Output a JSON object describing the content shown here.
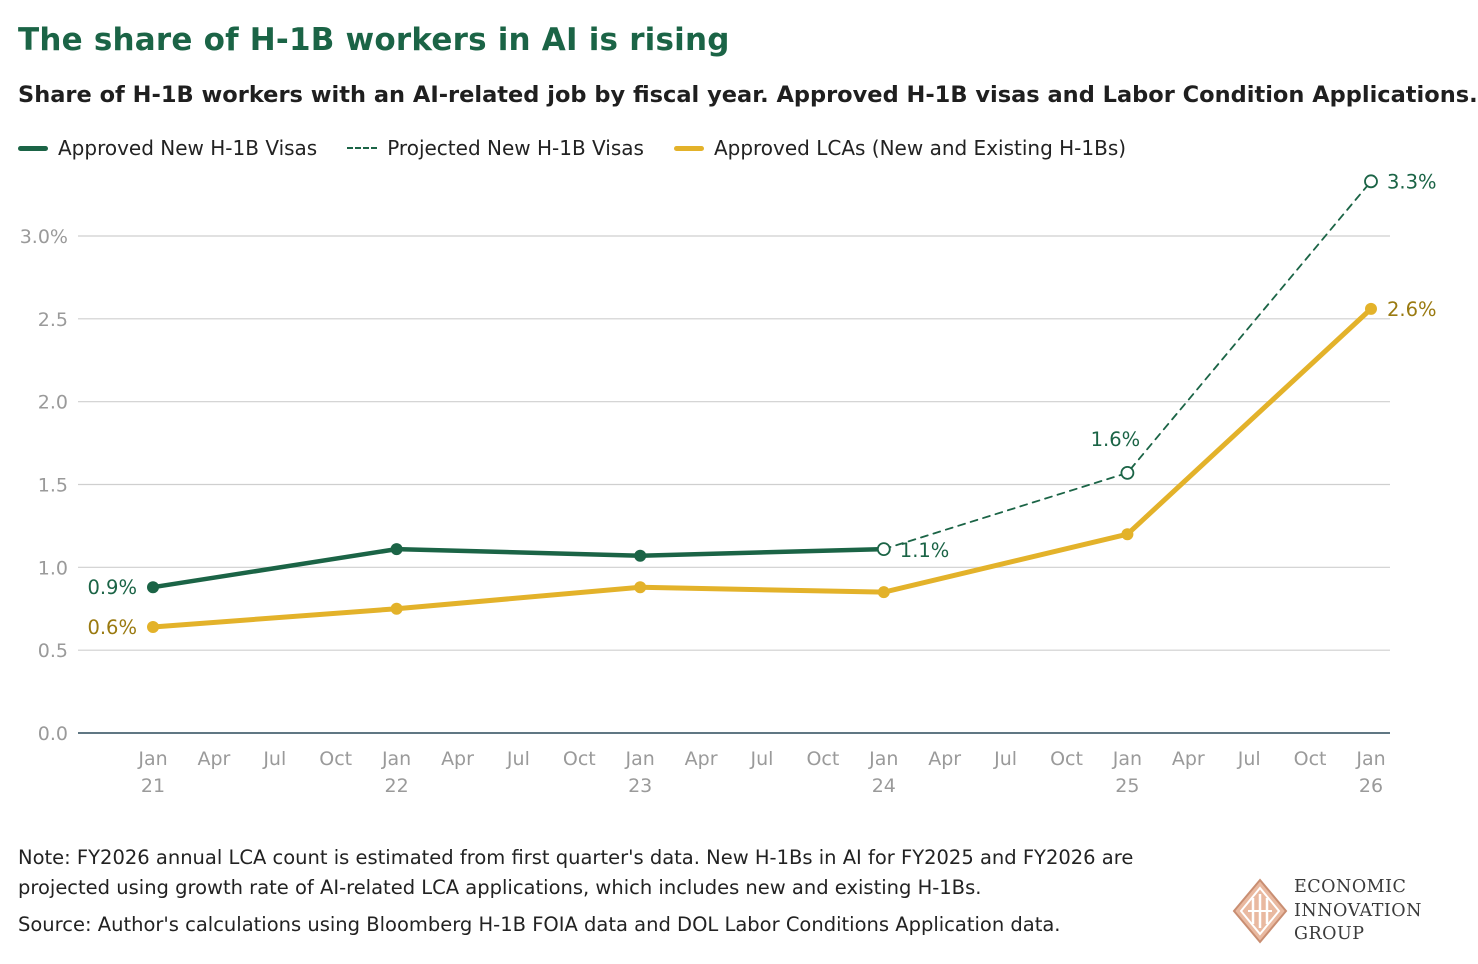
{
  "title": "The share of H-1B workers in AI is rising",
  "subtitle": "Share of H-1B workers with an AI-related job by fiscal year. Approved H-1B visas and Labor Condition Applications.",
  "legend": [
    {
      "label": "Approved New H-1B Visas",
      "style": "solid",
      "color": "#1b6446"
    },
    {
      "label": "Projected New H-1B Visas",
      "style": "dashed",
      "color": "#1b6446"
    },
    {
      "label": "Approved LCAs (New and Existing H-1Bs)",
      "style": "solid",
      "color": "#e3b22a"
    }
  ],
  "note": "Note: FY2026 annual LCA count is estimated from first quarter's data. New H-1Bs in AI for FY2025 and FY2026 are projected using growth rate of AI-related LCA applications, which includes new and existing H-1Bs.",
  "source": "Source: Author's calculations using Bloomberg H-1B FOIA data and DOL Labor Conditions Application data.",
  "logo": {
    "line1": "ECONOMIC",
    "line2": "INNOVATION",
    "line3": "GROUP"
  },
  "colors": {
    "green": "#1b6446",
    "gold": "#e3b22a",
    "gold_label": "#9a7a10",
    "grid": "#cfcfcf",
    "axis": "#2c4a5a",
    "tick": "#9a9a9a"
  },
  "chart_data": {
    "type": "line",
    "title": "The share of H-1B workers in AI is rising",
    "xlabel": "",
    "ylabel": "",
    "x_range_months": [
      -2,
      62
    ],
    "ylim": [
      0,
      3.3
    ],
    "y_ticks": [
      {
        "value": 0,
        "label": "0.0"
      },
      {
        "value": 0.5,
        "label": "0.5"
      },
      {
        "value": 1.0,
        "label": "1.0"
      },
      {
        "value": 1.5,
        "label": "1.5"
      },
      {
        "value": 2.0,
        "label": "2.0"
      },
      {
        "value": 2.5,
        "label": "2.5"
      },
      {
        "value": 3.0,
        "label": "3.0%"
      }
    ],
    "x_ticks": [
      {
        "m": 0,
        "label": "Jan",
        "year": "21"
      },
      {
        "m": 3,
        "label": "Apr",
        "year": ""
      },
      {
        "m": 6,
        "label": "Jul",
        "year": ""
      },
      {
        "m": 9,
        "label": "Oct",
        "year": ""
      },
      {
        "m": 12,
        "label": "Jan",
        "year": "22"
      },
      {
        "m": 15,
        "label": "Apr",
        "year": ""
      },
      {
        "m": 18,
        "label": "Jul",
        "year": ""
      },
      {
        "m": 21,
        "label": "Oct",
        "year": ""
      },
      {
        "m": 24,
        "label": "Jan",
        "year": "23"
      },
      {
        "m": 27,
        "label": "Apr",
        "year": ""
      },
      {
        "m": 30,
        "label": "Jul",
        "year": ""
      },
      {
        "m": 33,
        "label": "Oct",
        "year": ""
      },
      {
        "m": 36,
        "label": "Jan",
        "year": "24"
      },
      {
        "m": 39,
        "label": "Apr",
        "year": ""
      },
      {
        "m": 42,
        "label": "Jul",
        "year": ""
      },
      {
        "m": 45,
        "label": "Oct",
        "year": ""
      },
      {
        "m": 48,
        "label": "Jan",
        "year": "25"
      },
      {
        "m": 51,
        "label": "Apr",
        "year": ""
      },
      {
        "m": 54,
        "label": "Jul",
        "year": ""
      },
      {
        "m": 57,
        "label": "Oct",
        "year": ""
      },
      {
        "m": 60,
        "label": "Jan",
        "year": "26"
      }
    ],
    "series": [
      {
        "name": "Approved New H-1B Visas",
        "style": "solid",
        "color": "#1b6446",
        "points": [
          {
            "m": 0,
            "y": 0.88,
            "label": "0.9%",
            "label_side": "left"
          },
          {
            "m": 12,
            "y": 1.11,
            "label": ""
          },
          {
            "m": 24,
            "y": 1.07,
            "label": ""
          },
          {
            "m": 36,
            "y": 1.11,
            "label": ""
          }
        ]
      },
      {
        "name": "Projected New H-1B Visas",
        "style": "dashed",
        "color": "#1b6446",
        "points": [
          {
            "m": 36,
            "y": 1.11,
            "label": "1.1%",
            "label_side": "right-below"
          },
          {
            "m": 48,
            "y": 1.57,
            "label": "1.6%",
            "label_side": "above"
          },
          {
            "m": 60,
            "y": 3.33,
            "label": "3.3%",
            "label_side": "right"
          }
        ]
      },
      {
        "name": "Approved LCAs (New and Existing H-1Bs)",
        "style": "solid",
        "color": "#e3b22a",
        "points": [
          {
            "m": 0,
            "y": 0.64,
            "label": "0.6%",
            "label_side": "left"
          },
          {
            "m": 12,
            "y": 0.75,
            "label": ""
          },
          {
            "m": 24,
            "y": 0.88,
            "label": ""
          },
          {
            "m": 36,
            "y": 0.85,
            "label": ""
          },
          {
            "m": 48,
            "y": 1.2,
            "label": ""
          },
          {
            "m": 60,
            "y": 2.56,
            "label": "2.6%",
            "label_side": "right"
          }
        ]
      }
    ]
  }
}
